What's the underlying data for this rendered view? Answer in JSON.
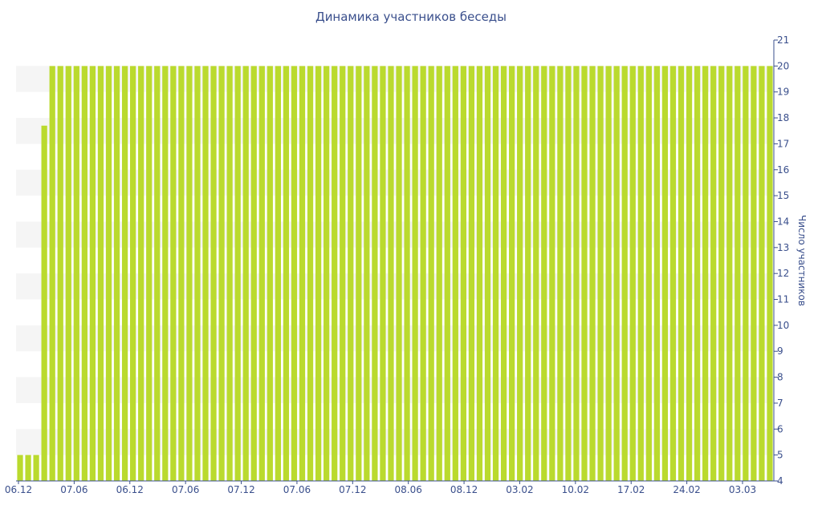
{
  "chart_data": {
    "type": "bar",
    "title": "Динамика участников беседы",
    "xlabel": "",
    "ylabel": "Число участников",
    "ylim": [
      4,
      21
    ],
    "y_ticks": [
      4,
      5,
      6,
      7,
      8,
      9,
      10,
      11,
      12,
      13,
      14,
      15,
      16,
      17,
      18,
      19,
      20,
      21
    ],
    "y_axis_position": "right",
    "grid": "alternating-bands",
    "x_tick_labels": [
      "06.12",
      "07.06",
      "06.12",
      "07.06",
      "07.12",
      "07.06",
      "07.12",
      "08.06",
      "08.12",
      "03.02",
      "10.02",
      "17.02",
      "24.02",
      "03.03"
    ],
    "values": [
      5,
      5,
      5,
      17.7,
      20,
      20,
      20,
      20,
      20,
      20,
      20,
      20,
      20,
      20,
      20,
      20,
      20,
      20,
      20,
      20,
      20,
      20,
      20,
      20,
      20,
      20,
      20,
      20,
      20,
      20,
      20,
      20,
      20,
      20,
      20,
      20,
      20,
      20,
      20,
      20,
      20,
      20,
      20,
      20,
      20,
      20,
      20,
      20,
      20,
      20,
      20,
      20,
      20,
      20,
      20,
      20,
      20,
      20,
      20,
      20,
      20,
      20,
      20,
      20,
      20,
      20,
      20,
      20,
      20,
      20,
      20,
      20,
      20,
      20,
      20,
      20,
      20,
      20,
      20,
      20,
      20,
      20,
      20,
      20,
      20,
      20,
      20,
      20,
      20,
      20,
      20,
      20,
      20,
      20
    ],
    "colors": {
      "bar": "#bada2e",
      "text": "#3a4f8c",
      "band": "#f5f5f5",
      "axis": "#3a4f8c"
    }
  }
}
